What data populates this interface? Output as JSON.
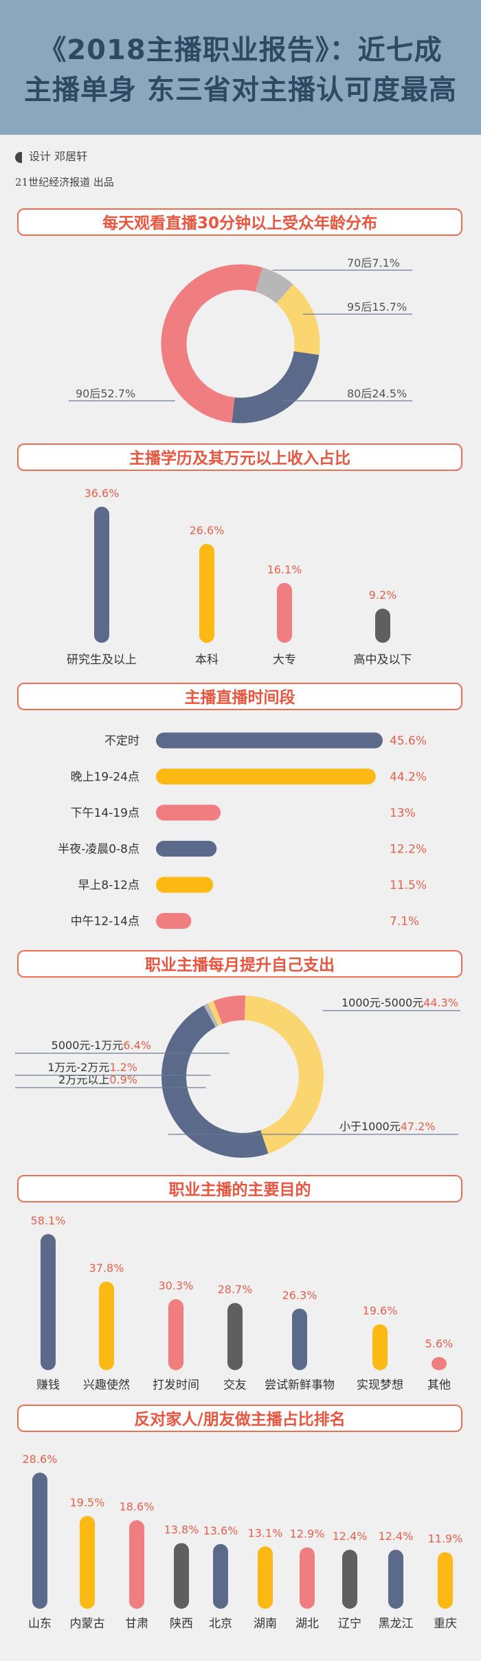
{
  "header": {
    "title_line1": "《2018主播职业报告》：近七成",
    "title_line2": "主播单身 东三省对主播认可度最高",
    "byline": "设计  邓居轩",
    "publisher": "21世纪经济报道  出品"
  },
  "colors": {
    "slate": "#5b6a8a",
    "gold": "#fcb813",
    "pink": "#f07d7f",
    "gray": "#5f5f5f",
    "lightgray": "#b7b7b7",
    "paleyellow": "#fbd56f",
    "accent": "#e9553e"
  },
  "chart_data": [
    {
      "type": "pie",
      "title": "每天观看直播30分钟以上受众年龄分布",
      "donut": true,
      "slices": [
        {
          "label": "70后",
          "value": 7.1,
          "text": "70后7.1%",
          "color": "#b7b7b7"
        },
        {
          "label": "95后",
          "value": 15.7,
          "text": "95后15.7%",
          "color": "#fbd56f"
        },
        {
          "label": "80后",
          "value": 24.5,
          "text": "80后24.5%",
          "color": "#5b6a8a"
        },
        {
          "label": "90后",
          "value": 52.7,
          "text": "90后52.7%",
          "color": "#f07d7f"
        }
      ]
    },
    {
      "type": "bar",
      "title": "主播学历及其万元以上收入占比",
      "categories": [
        "研究生及以上",
        "本科",
        "大专",
        "高中及以下"
      ],
      "values": [
        36.6,
        26.6,
        16.1,
        9.2
      ],
      "value_labels": [
        "36.6%",
        "26.6%",
        "16.1%",
        "9.2%"
      ],
      "colors": [
        "#5b6a8a",
        "#fcb813",
        "#f07d7f",
        "#5f5f5f"
      ]
    },
    {
      "type": "bar",
      "orientation": "horizontal",
      "title": "主播直播时间段",
      "categories": [
        "不定时",
        "晚上19-24点",
        "下午14-19点",
        "半夜-凌晨0-8点",
        "早上8-12点",
        "中午12-14点"
      ],
      "values": [
        45.6,
        44.2,
        13,
        12.2,
        11.5,
        7.1
      ],
      "value_labels": [
        "45.6%",
        "44.2%",
        "13%",
        "12.2%",
        "11.5%",
        "7.1%"
      ],
      "colors": [
        "#5b6a8a",
        "#fcb813",
        "#f07d7f",
        "#5b6a8a",
        "#fcb813",
        "#f07d7f"
      ]
    },
    {
      "type": "pie",
      "title": "职业主播每月提升自己支出",
      "donut": true,
      "slices": [
        {
          "label": "1000元-5000元",
          "value": 44.3,
          "text": "44.3%",
          "color": "#fbd56f"
        },
        {
          "label": "小于1000元",
          "value": 47.2,
          "text": "47.2%",
          "color": "#5b6a8a"
        },
        {
          "label": "2万元以上",
          "value": 0.9,
          "text": "0.9%",
          "color": "#b7b7b7"
        },
        {
          "label": "1万元-2万元",
          "value": 1.2,
          "text": "1.2%",
          "color": "#fbd56f"
        },
        {
          "label": "5000元-1万元",
          "value": 6.4,
          "text": "6.4%",
          "color": "#f07d7f"
        }
      ]
    },
    {
      "type": "bar",
      "title": "职业主播的主要目的",
      "categories": [
        "赚钱",
        "兴趣使然",
        "打发时间",
        "交友",
        "尝试新鲜事物",
        "实现梦想",
        "其他"
      ],
      "values": [
        58.1,
        37.8,
        30.3,
        28.7,
        26.3,
        19.6,
        5.6
      ],
      "value_labels": [
        "58.1%",
        "37.8%",
        "30.3%",
        "28.7%",
        "26.3%",
        "19.6%",
        "5.6%"
      ],
      "colors": [
        "#5b6a8a",
        "#fcb813",
        "#f07d7f",
        "#5f5f5f",
        "#5b6a8a",
        "#fcb813",
        "#f07d7f"
      ]
    },
    {
      "type": "bar",
      "title": "反对家人/朋友做主播占比排名",
      "categories": [
        "山东",
        "内蒙古",
        "甘肃",
        "陕西",
        "北京",
        "湖南",
        "湖北",
        "辽宁",
        "黑龙江",
        "重庆"
      ],
      "values": [
        28.6,
        19.5,
        18.6,
        13.8,
        13.6,
        13.1,
        12.9,
        12.4,
        12.4,
        11.9
      ],
      "value_labels": [
        "28.6%",
        "19.5%",
        "18.6%",
        "13.8%",
        "13.6%",
        "13.1%",
        "12.9%",
        "12.4%",
        "12.4%",
        "11.9%"
      ],
      "colors": [
        "#5b6a8a",
        "#fcb813",
        "#f07d7f",
        "#5f5f5f",
        "#5b6a8a",
        "#fcb813",
        "#f07d7f",
        "#5f5f5f",
        "#5b6a8a",
        "#fcb813"
      ]
    }
  ]
}
